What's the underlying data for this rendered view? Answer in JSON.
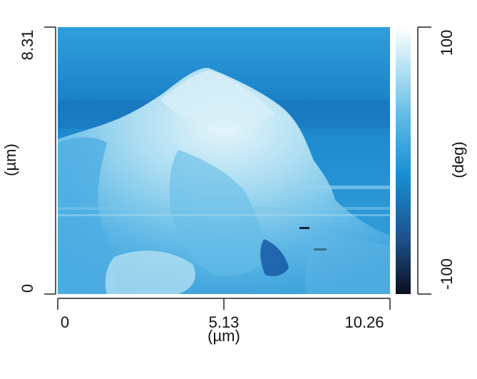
{
  "image": {
    "x_axis": {
      "ticks": [
        "0",
        "5.13",
        "10.26"
      ],
      "unit_label": "(µm)",
      "range": [
        0,
        10.26
      ]
    },
    "y_axis": {
      "ticks": [
        "0",
        "8.31"
      ],
      "unit_label": "(µm)",
      "range": [
        0,
        8.31
      ]
    },
    "colorbar": {
      "ticks": [
        "100",
        "-100"
      ],
      "unit_label": "(deg)",
      "range": [
        -100,
        100
      ],
      "colors": [
        "#0a0f1e",
        "#1d4f8a",
        "#1890d4",
        "#5ab7e4",
        "#b6e3f3",
        "#ffffff"
      ]
    }
  }
}
